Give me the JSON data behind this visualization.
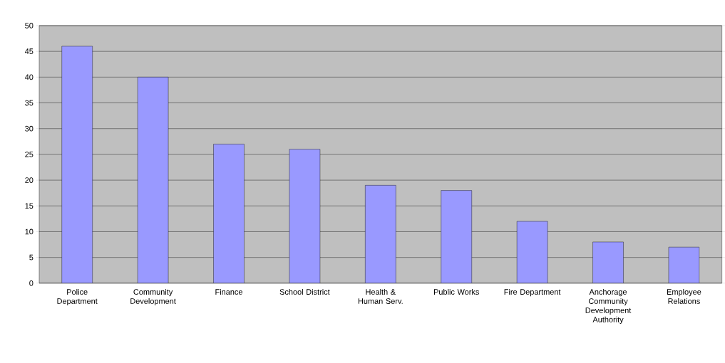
{
  "chart_data": {
    "type": "bar",
    "categories": [
      "Police Department",
      "Community Development",
      "Finance",
      "School District",
      "Health & Human Serv.",
      "Public Works",
      "Fire Department",
      "Anchorage Community Development Authority",
      "Employee Relations"
    ],
    "values": [
      46,
      40,
      27,
      26,
      19,
      18,
      12,
      8,
      7
    ],
    "color": "#9999ff",
    "ylim": [
      0,
      50
    ],
    "yticks": [
      0,
      5,
      10,
      15,
      20,
      25,
      30,
      35,
      40,
      45,
      50
    ],
    "grid": "y"
  }
}
